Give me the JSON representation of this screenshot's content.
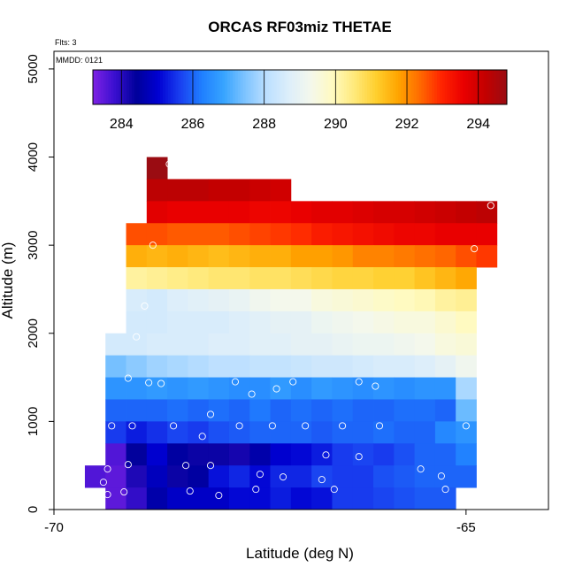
{
  "chart_data": {
    "type": "heatmap",
    "title": "ORCAS RF03miz THETAE",
    "xlabel": "Latitude (deg N)",
    "ylabel": "Altitude (m)",
    "notes": {
      "flights": "Flts: 3",
      "date": "MMDD: 0121"
    },
    "xlim": [
      -70,
      -64
    ],
    "ylim": [
      0,
      5200
    ],
    "x_ticks": [
      -70,
      -65
    ],
    "x_tick_labels": [
      "-70",
      "-65"
    ],
    "y_ticks": [
      0,
      1000,
      2000,
      3000,
      4000,
      5000
    ],
    "y_tick_labels": [
      "0",
      "1000",
      "2000",
      "3000",
      "4000",
      "5000"
    ],
    "colorbar": {
      "range": [
        283.2,
        294.8
      ],
      "ticks": [
        284,
        286,
        288,
        290,
        292,
        294
      ],
      "tick_labels": [
        "284",
        "286",
        "288",
        "290",
        "292",
        "294"
      ],
      "colors": [
        "#7e22e4",
        "#3a0fd0",
        "#00009a",
        "#0000d2",
        "#1a3ff0",
        "#1f7fff",
        "#37a4ff",
        "#7fc4ff",
        "#bde0ff",
        "#ddeefa",
        "#f4f8ec",
        "#fffac0",
        "#ffe97a",
        "#ffcf2e",
        "#ffa500",
        "#ff6b00",
        "#ff2400",
        "#ea0000",
        "#c40000",
        "#9a0c12"
      ]
    },
    "cell_size": {
      "dlat": 0.25,
      "dalt": 250
    },
    "grid": false,
    "cells": [
      [
        -68.75,
        3875,
        294.8
      ],
      [
        -68.75,
        3625,
        294.3
      ],
      [
        -68.5,
        3625,
        294.3
      ],
      [
        -68.25,
        3625,
        294.3
      ],
      [
        -68.0,
        3625,
        294.2
      ],
      [
        -67.75,
        3625,
        294.2
      ],
      [
        -67.5,
        3625,
        294.1
      ],
      [
        -67.25,
        3625,
        294.0
      ],
      [
        -68.75,
        3375,
        293.7
      ],
      [
        -68.5,
        3375,
        293.6
      ],
      [
        -68.25,
        3375,
        293.6
      ],
      [
        -68.0,
        3375,
        293.6
      ],
      [
        -67.75,
        3375,
        293.6
      ],
      [
        -67.5,
        3375,
        293.5
      ],
      [
        -67.25,
        3375,
        293.5
      ],
      [
        -67.0,
        3375,
        293.6
      ],
      [
        -66.75,
        3375,
        293.7
      ],
      [
        -66.5,
        3375,
        293.7
      ],
      [
        -66.25,
        3375,
        293.8
      ],
      [
        -66.0,
        3375,
        293.9
      ],
      [
        -65.75,
        3375,
        293.9
      ],
      [
        -65.5,
        3375,
        294.0
      ],
      [
        -65.25,
        3375,
        294.1
      ],
      [
        -65.0,
        3375,
        294.2
      ],
      [
        -64.75,
        3375,
        294.3
      ],
      [
        -69.0,
        3125,
        292.6
      ],
      [
        -68.75,
        3125,
        292.6
      ],
      [
        -68.5,
        3125,
        292.5
      ],
      [
        -68.25,
        3125,
        292.5
      ],
      [
        -68.0,
        3125,
        292.5
      ],
      [
        -67.75,
        3125,
        292.6
      ],
      [
        -67.5,
        3125,
        292.7
      ],
      [
        -67.25,
        3125,
        292.8
      ],
      [
        -67.0,
        3125,
        292.9
      ],
      [
        -66.75,
        3125,
        293.1
      ],
      [
        -66.5,
        3125,
        293.2
      ],
      [
        -66.25,
        3125,
        293.3
      ],
      [
        -66.0,
        3125,
        293.4
      ],
      [
        -65.75,
        3125,
        293.5
      ],
      [
        -65.5,
        3125,
        293.5
      ],
      [
        -65.25,
        3125,
        293.6
      ],
      [
        -65.0,
        3125,
        293.6
      ],
      [
        -64.75,
        3125,
        293.6
      ],
      [
        -69.0,
        2875,
        291.6
      ],
      [
        -68.75,
        2875,
        291.5
      ],
      [
        -68.5,
        2875,
        291.6
      ],
      [
        -68.25,
        2875,
        291.5
      ],
      [
        -68.0,
        2875,
        291.4
      ],
      [
        -67.75,
        2875,
        291.5
      ],
      [
        -67.5,
        2875,
        291.6
      ],
      [
        -67.25,
        2875,
        291.6
      ],
      [
        -67.0,
        2875,
        291.8
      ],
      [
        -66.75,
        2875,
        291.8
      ],
      [
        -66.5,
        2875,
        291.9
      ],
      [
        -66.25,
        2875,
        292.1
      ],
      [
        -66.0,
        2875,
        292.1
      ],
      [
        -65.75,
        2875,
        292.2
      ],
      [
        -65.5,
        2875,
        292.3
      ],
      [
        -65.25,
        2875,
        292.4
      ],
      [
        -65.0,
        2875,
        292.6
      ],
      [
        -64.75,
        2875,
        292.8
      ],
      [
        -69.0,
        2625,
        290.2
      ],
      [
        -68.75,
        2625,
        290.3
      ],
      [
        -68.5,
        2625,
        290.4
      ],
      [
        -68.25,
        2625,
        290.5
      ],
      [
        -68.0,
        2625,
        290.6
      ],
      [
        -67.75,
        2625,
        290.6
      ],
      [
        -67.5,
        2625,
        290.7
      ],
      [
        -67.25,
        2625,
        290.7
      ],
      [
        -67.0,
        2625,
        290.8
      ],
      [
        -66.75,
        2625,
        290.9
      ],
      [
        -66.5,
        2625,
        291.0
      ],
      [
        -66.25,
        2625,
        291.0
      ],
      [
        -66.0,
        2625,
        291.1
      ],
      [
        -65.75,
        2625,
        291.1
      ],
      [
        -65.5,
        2625,
        291.3
      ],
      [
        -65.25,
        2625,
        291.5
      ],
      [
        -65.0,
        2625,
        291.7
      ],
      [
        -69.0,
        2375,
        288.6
      ],
      [
        -68.75,
        2375,
        288.5
      ],
      [
        -68.5,
        2375,
        288.7
      ],
      [
        -68.25,
        2375,
        288.8
      ],
      [
        -68.0,
        2375,
        288.9
      ],
      [
        -67.75,
        2375,
        289.0
      ],
      [
        -67.5,
        2375,
        289.2
      ],
      [
        -67.25,
        2375,
        289.3
      ],
      [
        -67.0,
        2375,
        289.3
      ],
      [
        -66.75,
        2375,
        289.5
      ],
      [
        -66.5,
        2375,
        289.6
      ],
      [
        -66.25,
        2375,
        289.7
      ],
      [
        -66.0,
        2375,
        289.8
      ],
      [
        -65.75,
        2375,
        289.9
      ],
      [
        -65.5,
        2375,
        290.0
      ],
      [
        -65.25,
        2375,
        290.2
      ],
      [
        -65.0,
        2375,
        290.3
      ],
      [
        -69.0,
        2125,
        288.5
      ],
      [
        -68.75,
        2125,
        288.5
      ],
      [
        -68.5,
        2125,
        288.6
      ],
      [
        -68.25,
        2125,
        288.6
      ],
      [
        -68.0,
        2125,
        288.6
      ],
      [
        -67.75,
        2125,
        288.7
      ],
      [
        -67.5,
        2125,
        288.8
      ],
      [
        -67.25,
        2125,
        288.9
      ],
      [
        -67.0,
        2125,
        288.9
      ],
      [
        -66.75,
        2125,
        289.1
      ],
      [
        -66.5,
        2125,
        289.2
      ],
      [
        -66.25,
        2125,
        289.3
      ],
      [
        -66.0,
        2125,
        289.4
      ],
      [
        -65.75,
        2125,
        289.5
      ],
      [
        -65.5,
        2125,
        289.5
      ],
      [
        -65.25,
        2125,
        289.7
      ],
      [
        -65.0,
        2125,
        289.9
      ],
      [
        -69.25,
        1875,
        288.5
      ],
      [
        -69.0,
        1875,
        288.5
      ],
      [
        -68.75,
        1875,
        288.6
      ],
      [
        -68.5,
        1875,
        288.6
      ],
      [
        -68.25,
        1875,
        288.6
      ],
      [
        -68.0,
        1875,
        288.7
      ],
      [
        -67.75,
        1875,
        288.7
      ],
      [
        -67.5,
        1875,
        288.8
      ],
      [
        -67.25,
        1875,
        288.8
      ],
      [
        -67.0,
        1875,
        288.9
      ],
      [
        -66.75,
        1875,
        288.9
      ],
      [
        -66.5,
        1875,
        289.0
      ],
      [
        -66.25,
        1875,
        289.1
      ],
      [
        -66.0,
        1875,
        289.1
      ],
      [
        -65.75,
        1875,
        289.2
      ],
      [
        -65.5,
        1875,
        289.3
      ],
      [
        -65.25,
        1875,
        289.5
      ],
      [
        -65.0,
        1875,
        289.6
      ],
      [
        -69.25,
        1625,
        287.4
      ],
      [
        -69.0,
        1625,
        287.6
      ],
      [
        -68.75,
        1625,
        287.8
      ],
      [
        -68.5,
        1625,
        287.9
      ],
      [
        -68.25,
        1625,
        288.0
      ],
      [
        -68.0,
        1625,
        288.1
      ],
      [
        -67.75,
        1625,
        288.1
      ],
      [
        -67.5,
        1625,
        288.2
      ],
      [
        -67.25,
        1625,
        288.2
      ],
      [
        -67.0,
        1625,
        288.3
      ],
      [
        -66.75,
        1625,
        288.4
      ],
      [
        -66.5,
        1625,
        288.4
      ],
      [
        -66.25,
        1625,
        288.5
      ],
      [
        -66.0,
        1625,
        288.6
      ],
      [
        -65.75,
        1625,
        288.6
      ],
      [
        -65.5,
        1625,
        288.7
      ],
      [
        -65.25,
        1625,
        288.9
      ],
      [
        -65.0,
        1625,
        289.2
      ],
      [
        -69.25,
        1375,
        286.6
      ],
      [
        -69.0,
        1375,
        286.6
      ],
      [
        -68.75,
        1375,
        286.7
      ],
      [
        -68.5,
        1375,
        286.6
      ],
      [
        -68.25,
        1375,
        286.7
      ],
      [
        -68.0,
        1375,
        286.6
      ],
      [
        -67.75,
        1375,
        286.5
      ],
      [
        -67.5,
        1375,
        286.5
      ],
      [
        -67.25,
        1375,
        286.7
      ],
      [
        -67.0,
        1375,
        286.5
      ],
      [
        -66.75,
        1375,
        286.7
      ],
      [
        -66.5,
        1375,
        286.6
      ],
      [
        -66.25,
        1375,
        286.5
      ],
      [
        -66.0,
        1375,
        286.6
      ],
      [
        -65.75,
        1375,
        286.5
      ],
      [
        -65.5,
        1375,
        286.6
      ],
      [
        -65.25,
        1375,
        286.6
      ],
      [
        -65.0,
        1375,
        287.9
      ],
      [
        -69.25,
        1125,
        286.0
      ],
      [
        -69.0,
        1125,
        286.0
      ],
      [
        -68.75,
        1125,
        286.0
      ],
      [
        -68.5,
        1125,
        286.1
      ],
      [
        -68.25,
        1125,
        286.0
      ],
      [
        -68.0,
        1125,
        286.1
      ],
      [
        -67.75,
        1125,
        286.0
      ],
      [
        -67.5,
        1125,
        286.2
      ],
      [
        -67.25,
        1125,
        286.0
      ],
      [
        -67.0,
        1125,
        286.1
      ],
      [
        -66.75,
        1125,
        286.0
      ],
      [
        -66.5,
        1125,
        286.1
      ],
      [
        -66.25,
        1125,
        286.0
      ],
      [
        -66.0,
        1125,
        286.0
      ],
      [
        -65.75,
        1125,
        286.1
      ],
      [
        -65.5,
        1125,
        286.1
      ],
      [
        -65.25,
        1125,
        286.0
      ],
      [
        -65.0,
        1125,
        287.3
      ],
      [
        -69.25,
        875,
        285.6
      ],
      [
        -69.0,
        875,
        285.3
      ],
      [
        -68.75,
        875,
        285.5
      ],
      [
        -68.5,
        875,
        285.7
      ],
      [
        -68.25,
        875,
        285.6
      ],
      [
        -68.0,
        875,
        285.8
      ],
      [
        -67.75,
        875,
        285.9
      ],
      [
        -67.5,
        875,
        286.0
      ],
      [
        -67.25,
        875,
        286.0
      ],
      [
        -67.0,
        875,
        286.0
      ],
      [
        -66.75,
        875,
        285.9
      ],
      [
        -66.5,
        875,
        286.0
      ],
      [
        -66.25,
        875,
        286.0
      ],
      [
        -66.0,
        875,
        286.1
      ],
      [
        -65.75,
        875,
        286.0
      ],
      [
        -65.5,
        875,
        286.0
      ],
      [
        -65.25,
        875,
        286.4
      ],
      [
        -65.0,
        875,
        286.6
      ],
      [
        -69.25,
        625,
        283.6
      ],
      [
        -69.0,
        625,
        284.4
      ],
      [
        -68.75,
        625,
        285.0
      ],
      [
        -68.5,
        625,
        284.5
      ],
      [
        -68.25,
        625,
        284.3
      ],
      [
        -68.0,
        625,
        284.3
      ],
      [
        -67.75,
        625,
        284.2
      ],
      [
        -67.5,
        625,
        284.6
      ],
      [
        -67.25,
        625,
        285.0
      ],
      [
        -67.0,
        625,
        285.1
      ],
      [
        -66.75,
        625,
        285.3
      ],
      [
        -66.5,
        625,
        285.6
      ],
      [
        -66.25,
        625,
        285.7
      ],
      [
        -66.0,
        625,
        285.6
      ],
      [
        -65.75,
        625,
        285.8
      ],
      [
        -65.5,
        625,
        286.0
      ],
      [
        -65.25,
        625,
        286.0
      ],
      [
        -65.0,
        625,
        286.3
      ],
      [
        -69.5,
        375,
        283.6
      ],
      [
        -69.25,
        375,
        283.5
      ],
      [
        -69.0,
        375,
        284.1
      ],
      [
        -68.75,
        375,
        284.8
      ],
      [
        -68.5,
        375,
        284.3
      ],
      [
        -68.25,
        375,
        284.5
      ],
      [
        -68.0,
        375,
        285.2
      ],
      [
        -67.75,
        375,
        285.4
      ],
      [
        -67.5,
        375,
        285.1
      ],
      [
        -67.25,
        375,
        285.4
      ],
      [
        -67.0,
        375,
        285.4
      ],
      [
        -66.75,
        375,
        285.7
      ],
      [
        -66.5,
        375,
        285.6
      ],
      [
        -66.25,
        375,
        285.6
      ],
      [
        -66.0,
        375,
        285.8
      ],
      [
        -65.75,
        375,
        285.9
      ],
      [
        -65.5,
        375,
        286.0
      ],
      [
        -65.25,
        375,
        286.0
      ],
      [
        -65.0,
        375,
        286.0
      ],
      [
        -69.25,
        125,
        283.5
      ],
      [
        -69.0,
        125,
        283.9
      ],
      [
        -68.75,
        125,
        284.6
      ],
      [
        -68.5,
        125,
        284.9
      ],
      [
        -68.25,
        125,
        284.9
      ],
      [
        -68.0,
        125,
        284.9
      ],
      [
        -67.75,
        125,
        285.1
      ],
      [
        -67.5,
        125,
        285.1
      ],
      [
        -67.25,
        125,
        285.3
      ],
      [
        -67.0,
        125,
        285.1
      ],
      [
        -66.75,
        125,
        285.2
      ],
      [
        -66.5,
        125,
        285.6
      ],
      [
        -66.25,
        125,
        285.6
      ],
      [
        -66.0,
        125,
        285.7
      ],
      [
        -65.75,
        125,
        285.8
      ],
      [
        -65.5,
        125,
        285.9
      ],
      [
        -65.25,
        125,
        285.9
      ]
    ],
    "points": [
      [
        -68.6,
        3920
      ],
      [
        -64.7,
        3450
      ],
      [
        -68.8,
        3000
      ],
      [
        -64.9,
        2960
      ],
      [
        -68.9,
        2310
      ],
      [
        -69.0,
        1960
      ],
      [
        -69.1,
        1490
      ],
      [
        -68.85,
        1440
      ],
      [
        -68.7,
        1430
      ],
      [
        -67.8,
        1450
      ],
      [
        -67.6,
        1310
      ],
      [
        -67.3,
        1370
      ],
      [
        -67.1,
        1450
      ],
      [
        -66.3,
        1450
      ],
      [
        -66.1,
        1400
      ],
      [
        -68.1,
        1080
      ],
      [
        -69.3,
        950
      ],
      [
        -69.05,
        950
      ],
      [
        -68.55,
        950
      ],
      [
        -67.75,
        950
      ],
      [
        -67.35,
        950
      ],
      [
        -66.95,
        950
      ],
      [
        -66.5,
        950
      ],
      [
        -66.05,
        950
      ],
      [
        -65.0,
        950
      ],
      [
        -68.2,
        830
      ],
      [
        -66.7,
        620
      ],
      [
        -66.3,
        600
      ],
      [
        -69.1,
        510
      ],
      [
        -68.4,
        500
      ],
      [
        -68.1,
        500
      ],
      [
        -65.55,
        460
      ],
      [
        -69.35,
        460
      ],
      [
        -67.5,
        400
      ],
      [
        -67.22,
        370
      ],
      [
        -65.3,
        380
      ],
      [
        -66.75,
        340
      ],
      [
        -69.4,
        310
      ],
      [
        -67.55,
        230
      ],
      [
        -68.35,
        210
      ],
      [
        -66.6,
        230
      ],
      [
        -65.25,
        230
      ],
      [
        -69.15,
        200
      ],
      [
        -69.35,
        170
      ],
      [
        -68.0,
        160
      ]
    ]
  }
}
